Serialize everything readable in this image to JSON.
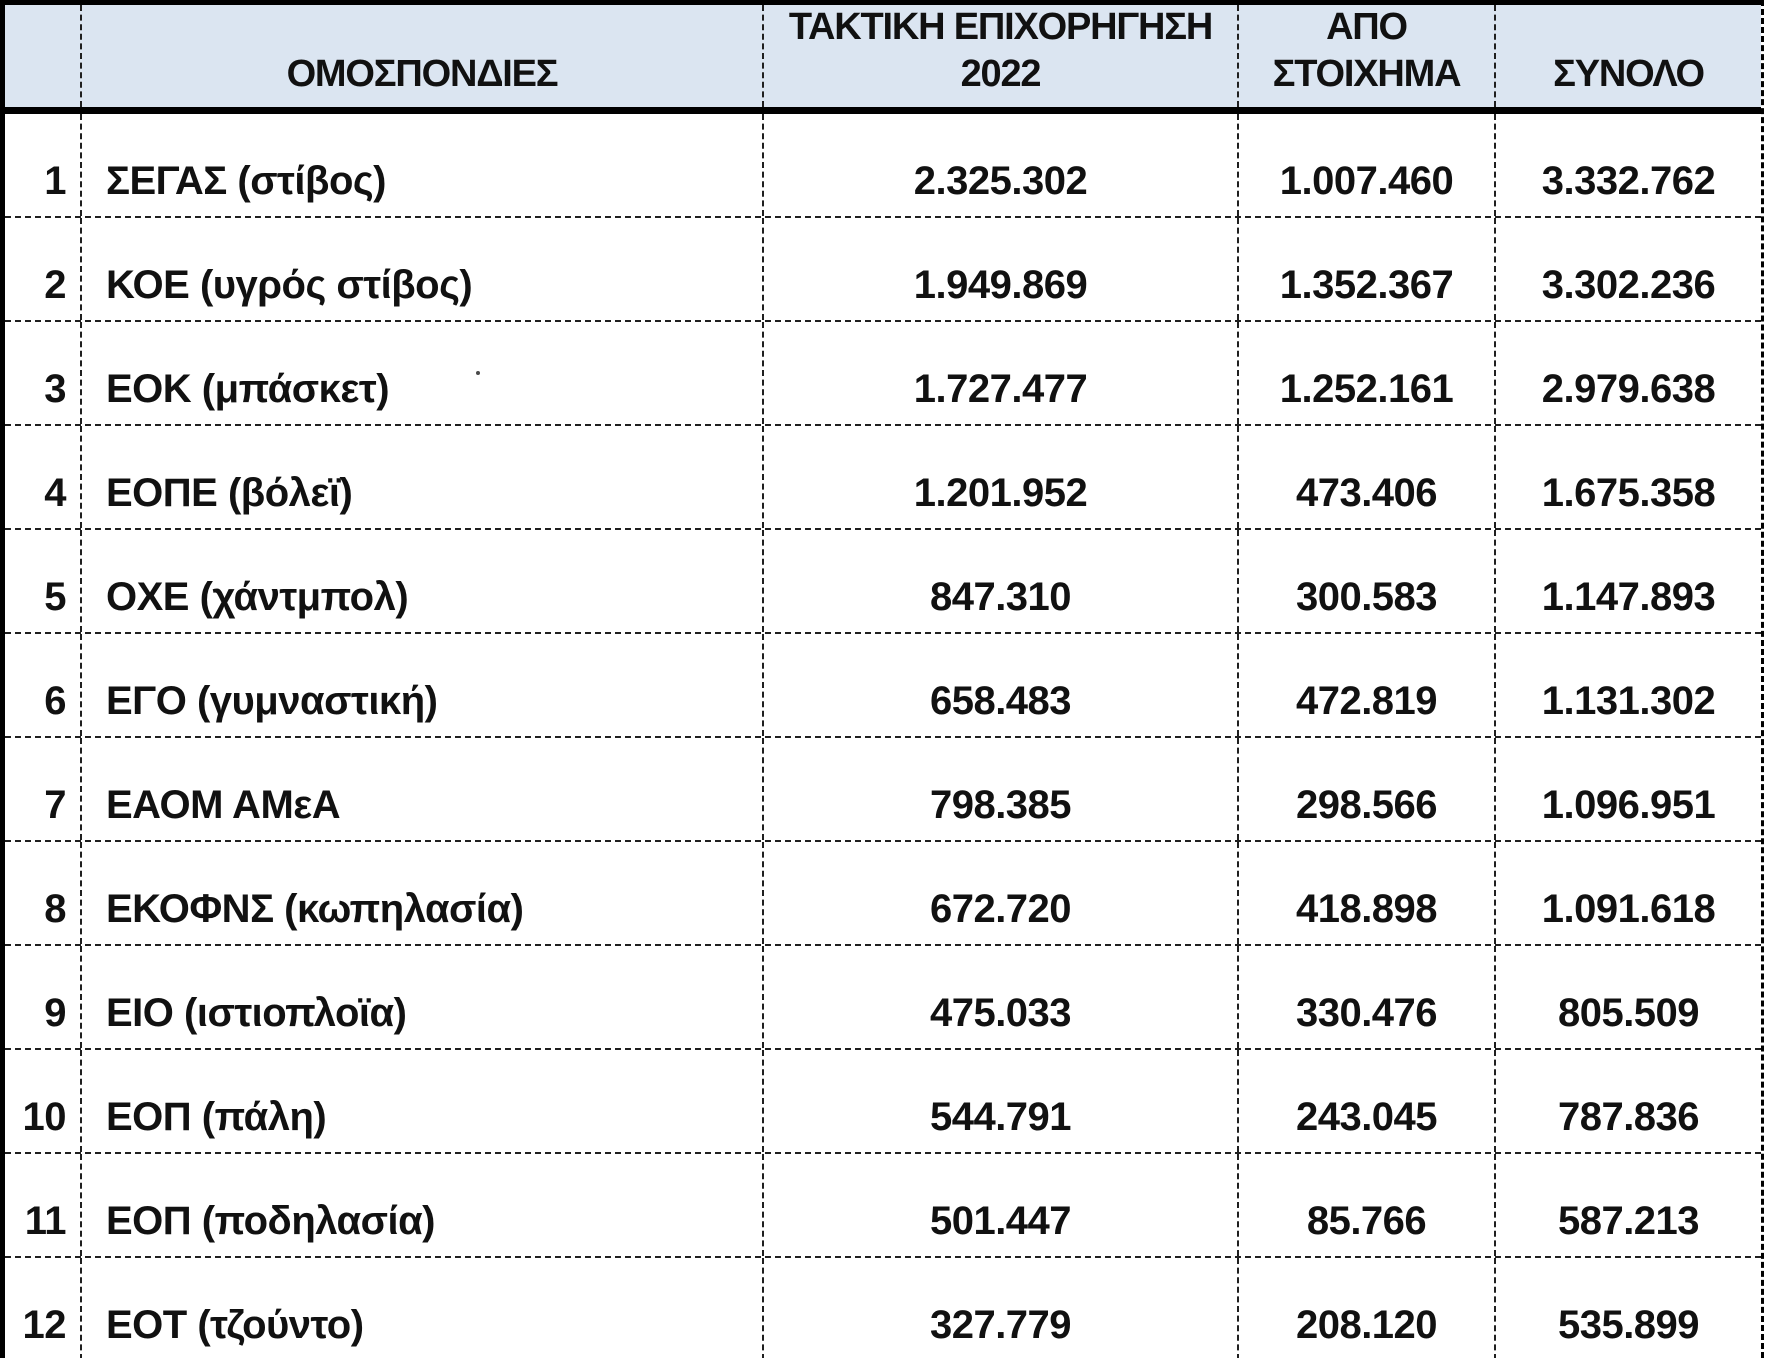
{
  "colors": {
    "header_bg": "#dbe5f1",
    "border": "#000000",
    "gridline": "#1f1f1f",
    "text": "#111111"
  },
  "table": {
    "columns": [
      {
        "key": "index",
        "header": ""
      },
      {
        "key": "federation",
        "header": "ΟΜΟΣΠΟΝΔΙΕΣ"
      },
      {
        "key": "regular",
        "header": "ΤΑΚΤΙΚΗ ΕΠΙΧΟΡΗΓΗΣΗ\n2022"
      },
      {
        "key": "betting",
        "header": "ΑΠΟ\nΣΤΟΙΧΗΜΑ"
      },
      {
        "key": "total",
        "header": "ΣΥΝΟΛΟ"
      }
    ],
    "rows": [
      {
        "index": "1",
        "federation": "ΣΕΓΑΣ (στίβος)",
        "regular": "2.325.302",
        "betting": "1.007.460",
        "total": "3.332.762"
      },
      {
        "index": "2",
        "federation": "ΚΟΕ (υγρός στίβος)",
        "regular": "1.949.869",
        "betting": "1.352.367",
        "total": "3.302.236"
      },
      {
        "index": "3",
        "federation": "ΕΟΚ (μπάσκετ)",
        "regular": "1.727.477",
        "betting": "1.252.161",
        "total": "2.979.638"
      },
      {
        "index": "4",
        "federation": "ΕΟΠΕ (βόλεϊ)",
        "regular": "1.201.952",
        "betting": "473.406",
        "total": "1.675.358"
      },
      {
        "index": "5",
        "federation": "ΟΧΕ (χάντμπολ)",
        "regular": "847.310",
        "betting": "300.583",
        "total": "1.147.893"
      },
      {
        "index": "6",
        "federation": "ΕΓΟ (γυμναστική)",
        "regular": "658.483",
        "betting": "472.819",
        "total": "1.131.302"
      },
      {
        "index": "7",
        "federation": "ΕΑΟΜ ΑΜεΑ",
        "regular": "798.385",
        "betting": "298.566",
        "total": "1.096.951"
      },
      {
        "index": "8",
        "federation": "ΕΚΟΦΝΣ (κωπηλασία)",
        "regular": "672.720",
        "betting": "418.898",
        "total": "1.091.618"
      },
      {
        "index": "9",
        "federation": "ΕΙΟ (ιστιοπλοϊα)",
        "regular": "475.033",
        "betting": "330.476",
        "total": "805.509"
      },
      {
        "index": "10",
        "federation": "ΕΟΠ (πάλη)",
        "regular": "544.791",
        "betting": "243.045",
        "total": "787.836"
      },
      {
        "index": "11",
        "federation": "ΕΟΠ (ποδηλασία)",
        "regular": "501.447",
        "betting": "85.766",
        "total": "587.213"
      },
      {
        "index": "12",
        "federation": "ΕΟΤ (τζούντο)",
        "regular": "327.779",
        "betting": "208.120",
        "total": "535.899"
      }
    ]
  }
}
